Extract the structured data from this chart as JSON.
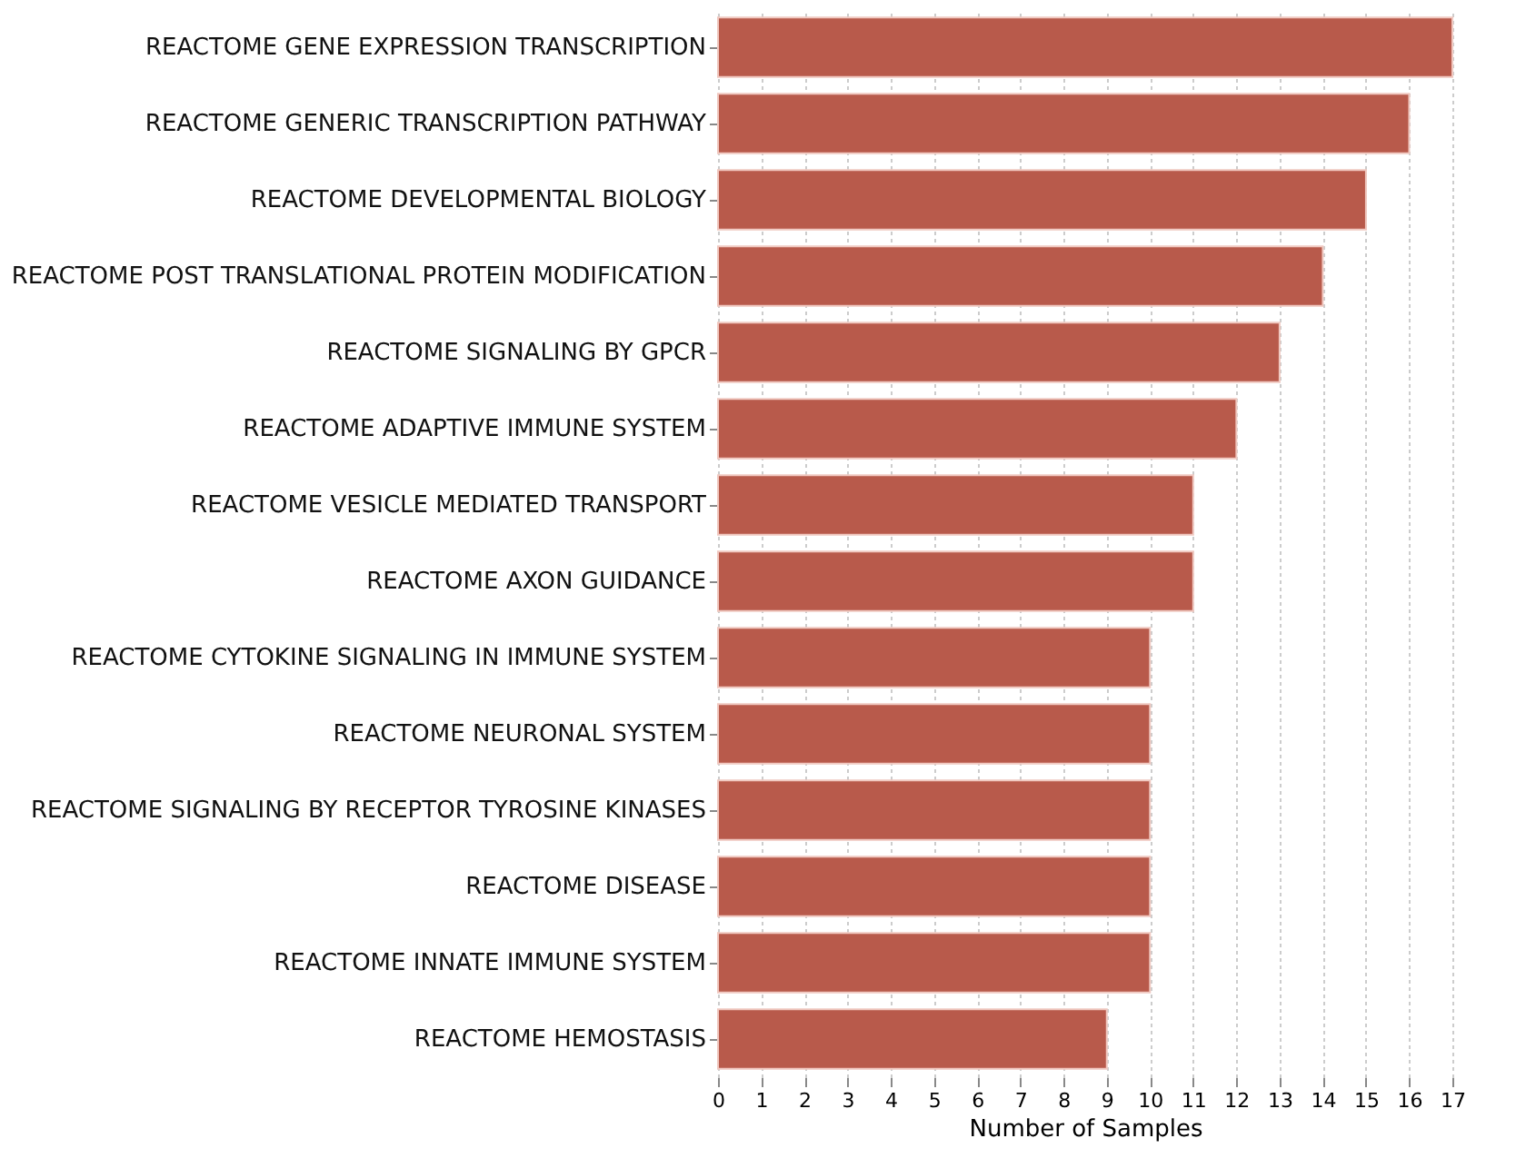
{
  "chart_data": {
    "type": "bar",
    "orientation": "horizontal",
    "xlabel": "Number of Samples",
    "categories": [
      "REACTOME GENE EXPRESSION TRANSCRIPTION",
      "REACTOME GENERIC TRANSCRIPTION PATHWAY",
      "REACTOME DEVELOPMENTAL BIOLOGY",
      "REACTOME POST TRANSLATIONAL PROTEIN MODIFICATION",
      "REACTOME SIGNALING BY GPCR",
      "REACTOME ADAPTIVE IMMUNE SYSTEM",
      "REACTOME VESICLE MEDIATED TRANSPORT",
      "REACTOME AXON GUIDANCE",
      "REACTOME CYTOKINE SIGNALING IN IMMUNE SYSTEM",
      "REACTOME NEURONAL SYSTEM",
      "REACTOME SIGNALING BY RECEPTOR TYROSINE KINASES",
      "REACTOME DISEASE",
      "REACTOME INNATE IMMUNE SYSTEM",
      "REACTOME HEMOSTASIS"
    ],
    "values": [
      17,
      16,
      15,
      14,
      13,
      12,
      11,
      11,
      10,
      10,
      10,
      10,
      10,
      9
    ],
    "color": "#b85a4b",
    "xlim": [
      0,
      17
    ],
    "xticks": [
      0,
      1,
      2,
      3,
      4,
      5,
      6,
      7,
      8,
      9,
      10,
      11,
      12,
      13,
      14,
      15,
      16,
      17
    ],
    "grid": "x"
  }
}
